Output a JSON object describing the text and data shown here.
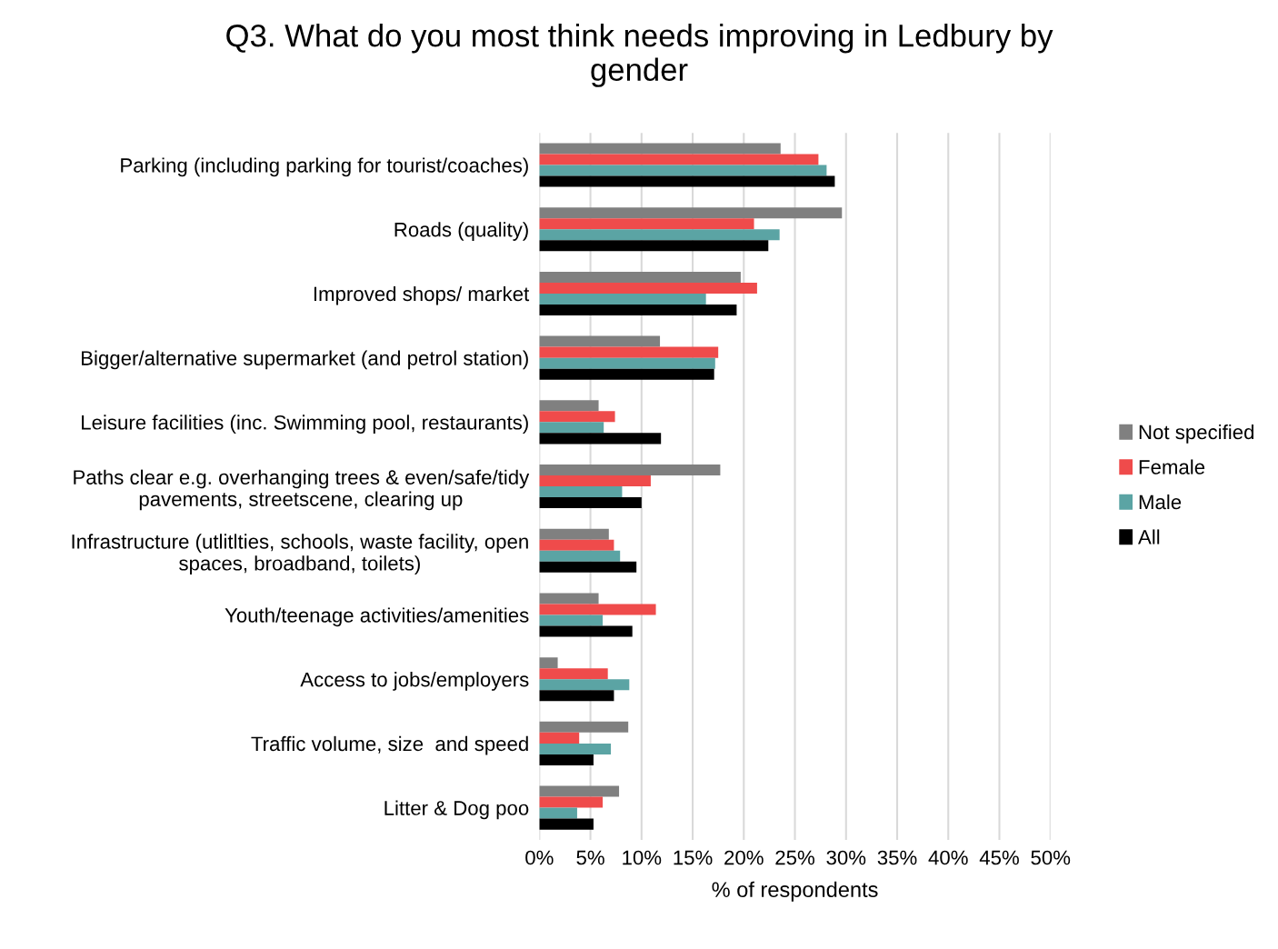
{
  "chart_data": {
    "type": "bar",
    "orientation": "horizontal",
    "title": "Q3. What do you most think needs improving in Ledbury by\ngender",
    "xlabel": "% of respondents",
    "categories": [
      "Parking (including parking for tourist/coaches)",
      "Roads (quality)",
      "Improved shops/ market",
      "Bigger/alternative supermarket (and petrol station)",
      "Leisure facilities (inc. Swimming pool, restaurants)",
      "Paths clear e.g. overhanging trees & even/safe/tidy\npavements, streetscene, clearing up",
      "Infrastructure (utlitlties, schools, waste facility, open\nspaces, broadband, toilets)",
      "Youth/teenage activities/amenities",
      "Access to jobs/employers",
      "Traffic volume, size  and speed",
      "Litter & Dog poo"
    ],
    "series": [
      {
        "name": "Not specified",
        "color": "#808080",
        "values": [
          23.6,
          29.6,
          19.7,
          11.8,
          5.8,
          17.7,
          6.8,
          5.8,
          1.8,
          8.7,
          7.8
        ]
      },
      {
        "name": "Female",
        "color": "#ef4b4b",
        "values": [
          27.3,
          21.0,
          21.3,
          17.5,
          7.4,
          10.9,
          7.3,
          11.4,
          6.7,
          3.9,
          6.2
        ]
      },
      {
        "name": "Male",
        "color": "#5ba4a4",
        "values": [
          28.1,
          23.5,
          16.3,
          17.2,
          6.3,
          8.1,
          7.9,
          6.2,
          8.8,
          7.0,
          3.7
        ]
      },
      {
        "name": "All",
        "color": "#000000",
        "values": [
          28.9,
          22.4,
          19.3,
          17.1,
          11.9,
          10.0,
          9.5,
          9.1,
          7.3,
          5.3,
          5.3
        ]
      }
    ],
    "xlim": [
      0,
      50
    ],
    "xticks": [
      {
        "value": 0,
        "label": "0%"
      },
      {
        "value": 5,
        "label": "5%"
      },
      {
        "value": 10,
        "label": "10%"
      },
      {
        "value": 15,
        "label": "15%"
      },
      {
        "value": 20,
        "label": "20%"
      },
      {
        "value": 25,
        "label": "25%"
      },
      {
        "value": 30,
        "label": "30%"
      },
      {
        "value": 35,
        "label": "35%"
      },
      {
        "value": 40,
        "label": "40%"
      },
      {
        "value": 45,
        "label": "45%"
      },
      {
        "value": 50,
        "label": "50%"
      }
    ],
    "grid": "x",
    "legend": "right"
  }
}
